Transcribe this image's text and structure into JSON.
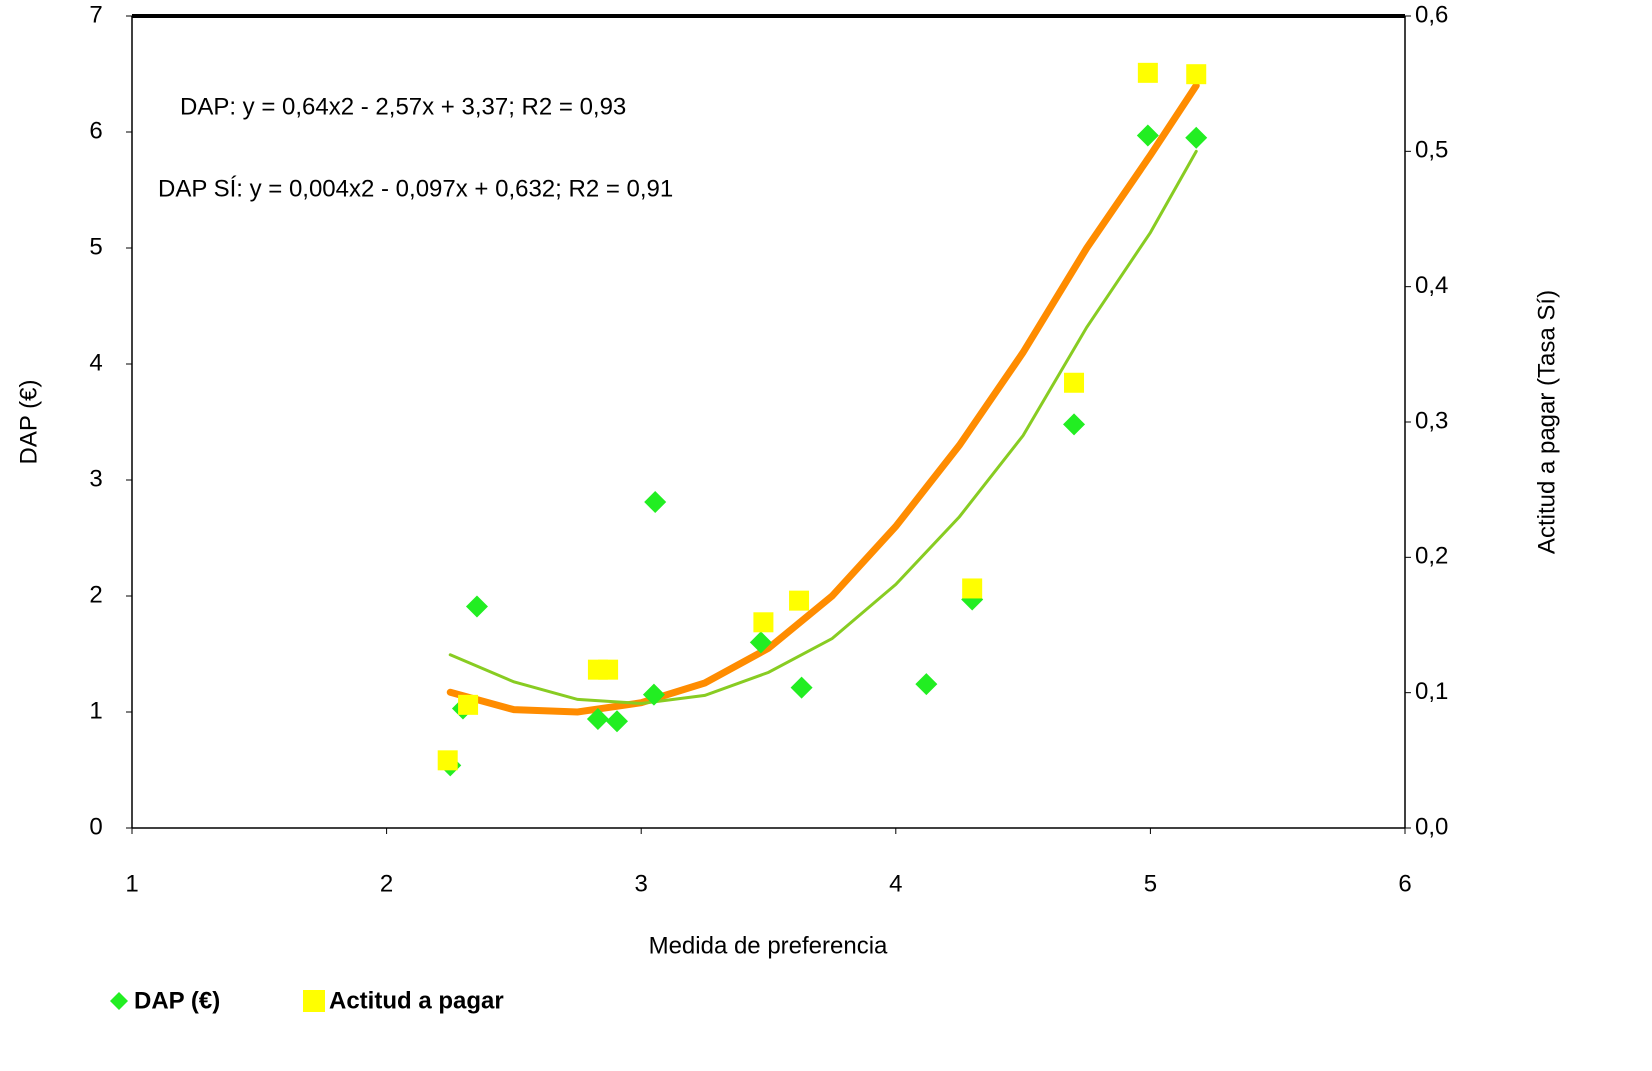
{
  "chart_data": {
    "type": "scatter",
    "annotations": [
      "DAP: y = 0,64x2 - 2,57x + 3,37;  R2 = 0,93",
      "DAP SÍ: y = 0,004x2 - 0,097x + 0,632; R2 = 0,91"
    ],
    "xlabel": "Medida de preferencia",
    "ylabel": "DAP (€)",
    "y2label": "Actitud a pagar (Tasa  Sí)",
    "xlim": [
      1,
      6
    ],
    "xticks": [
      1,
      2,
      3,
      4,
      5,
      6
    ],
    "ylim": [
      0,
      7
    ],
    "yticks": [
      0,
      1,
      2,
      3,
      4,
      5,
      6,
      7
    ],
    "y2lim": [
      0,
      0.6
    ],
    "y2ticks": [
      {
        "value": 0,
        "label": "0,0"
      },
      {
        "value": 0.1,
        "label": "0,1"
      },
      {
        "value": 0.2,
        "label": "0,2"
      },
      {
        "value": 0.3,
        "label": "0,3"
      },
      {
        "value": 0.4,
        "label": "0,4"
      },
      {
        "value": 0.5,
        "label": "0,5"
      },
      {
        "value": 0.6,
        "label": "0,6"
      }
    ],
    "legend": "bottom-left",
    "series": [
      {
        "name": "DAP (€)",
        "color": "#22ee22",
        "marker": "diamond",
        "x": [
          2.25,
          2.3,
          2.355,
          2.83,
          2.905,
          3.055,
          3.05,
          3.47,
          3.63,
          4.12,
          4.3,
          4.7,
          4.99,
          5.18
        ],
        "values": [
          0.54,
          1.03,
          1.91,
          0.94,
          0.92,
          2.81,
          1.15,
          1.6,
          1.21,
          1.24,
          1.97,
          3.48,
          5.97,
          5.95
        ]
      },
      {
        "name": "Actitud a pagar",
        "color": "#ffff00",
        "marker": "square",
        "axis": "y2",
        "x": [
          2.24,
          2.32,
          2.83,
          2.87,
          3.48,
          3.62,
          4.3,
          4.7,
          4.99,
          5.18
        ],
        "values": [
          0.05,
          0.091,
          0.117,
          0.117,
          0.152,
          0.168,
          0.177,
          0.329,
          0.558,
          0.557
        ]
      }
    ],
    "trendlines": [
      {
        "color": "#ff8c00",
        "width": 7,
        "x": [
          2.25,
          2.5,
          2.75,
          3.0,
          3.25,
          3.5,
          3.75,
          4.0,
          4.25,
          4.5,
          4.75,
          5.0,
          5.18
        ],
        "values": [
          1.17,
          1.02,
          1.0,
          1.08,
          1.25,
          1.55,
          2.0,
          2.6,
          3.3,
          4.1,
          5.0,
          5.8,
          6.4
        ]
      },
      {
        "color": "#88cc22",
        "width": 3,
        "axis": "y2",
        "x": [
          2.25,
          2.5,
          2.75,
          3.0,
          3.25,
          3.5,
          3.75,
          4.0,
          4.25,
          4.5,
          4.75,
          5.0,
          5.18
        ],
        "values": [
          0.128,
          0.108,
          0.095,
          0.092,
          0.098,
          0.115,
          0.14,
          0.18,
          0.23,
          0.29,
          0.37,
          0.44,
          0.5
        ]
      }
    ]
  }
}
